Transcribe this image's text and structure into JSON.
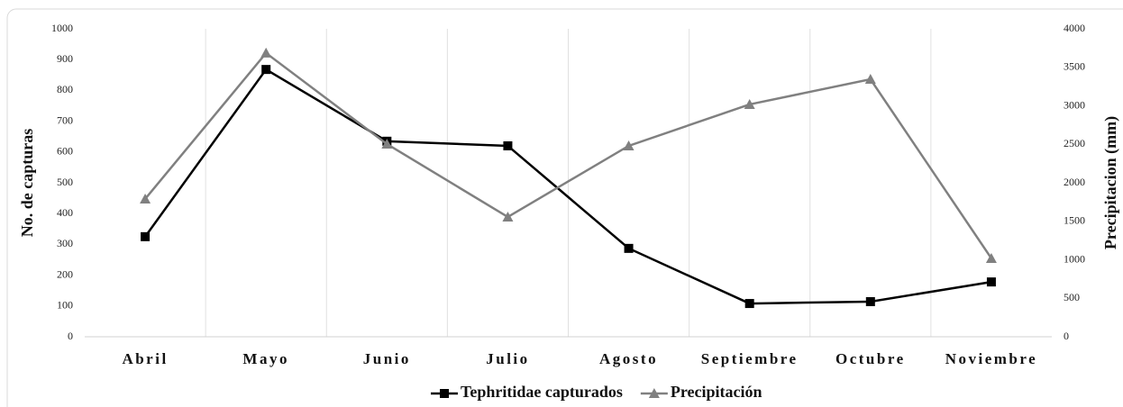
{
  "chart_data": {
    "type": "line",
    "categories": [
      "Abril",
      "Mayo",
      "Junio",
      "Julio",
      "Agosto",
      "Septiembre",
      "Octubre",
      "Noviembre"
    ],
    "series": [
      {
        "name": "Tephritidae capturados",
        "color": "#000000",
        "marker": "square",
        "values": [
          325,
          868,
          635,
          620,
          287,
          108,
          114,
          178
        ]
      },
      {
        "name": "Precipitación",
        "color": "#808080",
        "marker": "triangle",
        "axis": "y2",
        "values": [
          1790,
          3685,
          2503,
          1556,
          2480,
          3018,
          3345,
          1018
        ]
      }
    ],
    "ylabel": "No. de capturas",
    "y2label": "Precipitacion (mm)",
    "ylim": [
      0,
      1000
    ],
    "yticks": [
      0,
      100,
      200,
      300,
      400,
      500,
      600,
      700,
      800,
      900,
      1000
    ],
    "y2lim": [
      0,
      4000
    ],
    "y2ticks": [
      0,
      500,
      1000,
      1500,
      2000,
      2500,
      3000,
      3500,
      4000
    ],
    "grid": "x",
    "legend": "bottom"
  }
}
